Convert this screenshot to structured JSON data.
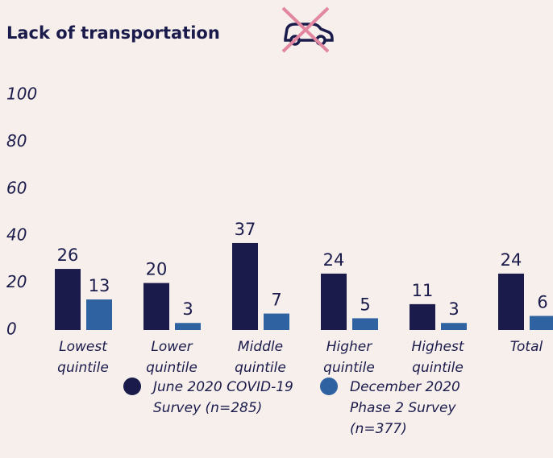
{
  "chart_data": {
    "type": "bar",
    "title": "Lack of transportation",
    "categories": [
      "Lowest quintile",
      "Lower quintile",
      "Middle quintile",
      "Higher quintile",
      "Highest quintile",
      "Total"
    ],
    "series": [
      {
        "name": "June 2020 COVID-19 Survey (n=285)",
        "color": "#1b1b4b",
        "values": [
          26,
          20,
          37,
          24,
          11,
          24
        ]
      },
      {
        "name": "December 2020 Phase 2 Survey (n=377)",
        "color": "#2e62a1",
        "values": [
          13,
          3,
          7,
          5,
          3,
          6
        ]
      }
    ],
    "ylim": [
      0,
      100
    ],
    "yticks": [
      0,
      20,
      40,
      60,
      80,
      100
    ],
    "grid": false
  }
}
